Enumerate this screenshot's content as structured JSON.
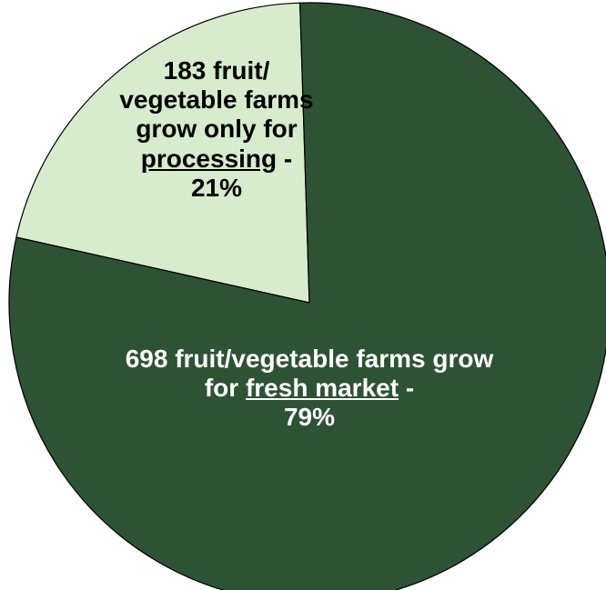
{
  "chart_data": {
    "type": "pie",
    "title": "",
    "slices": [
      {
        "value": 21,
        "count": 183,
        "color": "#d6eccd",
        "label": {
          "pre": "183 fruit/ vegetable farms grow only for",
          "emph": "processing",
          "post": "-",
          "pct": "21%"
        }
      },
      {
        "value": 79,
        "count": 698,
        "color": "#2d5234",
        "label": {
          "pre": "698 fruit/vegetable farms grow for",
          "emph": "fresh market",
          "post": "-",
          "pct": "79%"
        }
      }
    ],
    "outline_color": "#000000"
  }
}
